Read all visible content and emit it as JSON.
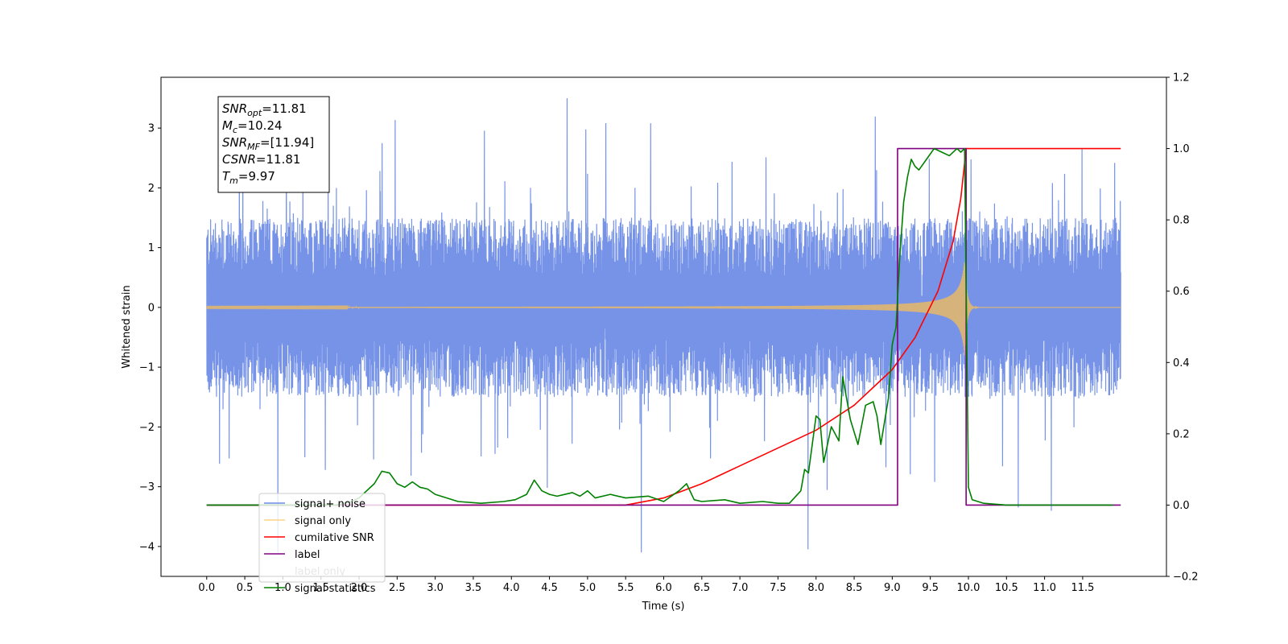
{
  "chart_data": {
    "type": "line",
    "title": "",
    "xlabel": "Time (s)",
    "ylabel": "Whitened strain",
    "y2label": "",
    "xlim": [
      -0.6,
      12.6
    ],
    "ylim": [
      -4.5,
      3.85
    ],
    "y2lim": [
      -0.2,
      1.2
    ],
    "x_ticks": [
      "0.0",
      "0.5",
      "1.0",
      "1.5",
      "2.0",
      "2.5",
      "3.0",
      "3.5",
      "4.0",
      "4.5",
      "5.0",
      "5.5",
      "6.0",
      "6.5",
      "7.0",
      "7.5",
      "8.0",
      "8.5",
      "9.0",
      "9.5",
      "10.0",
      "10.5",
      "11.0",
      "11.5"
    ],
    "y_ticks": [
      "3",
      "2",
      "1",
      "0",
      "−1",
      "−2",
      "−3",
      "−4"
    ],
    "y2_ticks": [
      "1.2",
      "1.0",
      "0.8",
      "0.6",
      "0.4",
      "0.2",
      "0.0",
      "−0.2"
    ],
    "grid": false,
    "legend_position": "lower-left",
    "annotation": {
      "lines": [
        {
          "sym": "SNR",
          "sub": "opt",
          "val": "=11.81"
        },
        {
          "sym": "M",
          "sub": "c",
          "val": "=10.24"
        },
        {
          "sym": "SNR",
          "sub": "MF",
          "val": "=[11.94]"
        },
        {
          "sym": "CSNR",
          "sub": "",
          "val": "=11.81"
        },
        {
          "sym": "T",
          "sub": "m",
          "val": "=9.97"
        }
      ]
    },
    "series": [
      {
        "name": "signal+ noise",
        "axis": "left",
        "color": "#6a8ae6",
        "description": "whitened noisy strain, roughly ±1.5 envelope with spikes up to about ±3.5, from t=0 to t=12",
        "x_range": [
          0,
          12
        ],
        "typical_amplitude": 1.5
      },
      {
        "name": "signal only",
        "axis": "left",
        "color": "#ffc04d",
        "description": "chirp waveform growing from ~0 to amplitude ~0.8 at t≈9.95, then ringdown to 0",
        "x_range": [
          0,
          12
        ],
        "peak_time": 9.95,
        "peak_amplitude": 0.8
      },
      {
        "name": "cumilative SNR",
        "axis": "right",
        "color": "#ff0000",
        "x": [
          0,
          5.5,
          6.0,
          6.5,
          7.0,
          7.5,
          8.0,
          8.5,
          9.0,
          9.3,
          9.6,
          9.8,
          9.9,
          9.97,
          9.97,
          12
        ],
        "y": [
          0.0,
          0.0,
          0.02,
          0.06,
          0.11,
          0.16,
          0.21,
          0.28,
          0.38,
          0.47,
          0.6,
          0.74,
          0.86,
          1.0,
          1.0,
          1.0
        ]
      },
      {
        "name": "label",
        "axis": "right",
        "color": "#800080",
        "x": [
          0,
          9.07,
          9.07,
          9.97,
          9.97,
          12
        ],
        "y": [
          0,
          0,
          1,
          1,
          0,
          0
        ]
      },
      {
        "name": "label only",
        "axis": "right",
        "color": "#ffffff",
        "x": [],
        "y": []
      },
      {
        "name": "signal statistics",
        "axis": "right",
        "color": "#008000",
        "x": [
          0,
          1.7,
          1.9,
          2.0,
          2.1,
          2.2,
          2.3,
          2.4,
          2.5,
          2.6,
          2.7,
          2.8,
          2.9,
          3.0,
          3.3,
          3.6,
          3.9,
          4.05,
          4.2,
          4.3,
          4.4,
          4.5,
          4.6,
          4.8,
          4.9,
          5.0,
          5.1,
          5.3,
          5.5,
          5.8,
          6.0,
          6.2,
          6.3,
          6.4,
          6.5,
          6.8,
          7.0,
          7.3,
          7.5,
          7.65,
          7.8,
          7.85,
          7.9,
          8.0,
          8.05,
          8.1,
          8.2,
          8.3,
          8.35,
          8.45,
          8.55,
          8.65,
          8.75,
          8.8,
          8.85,
          8.95,
          9.0,
          9.05,
          9.1,
          9.15,
          9.2,
          9.25,
          9.3,
          9.35,
          9.45,
          9.55,
          9.65,
          9.75,
          9.85,
          9.9,
          9.95,
          10.0,
          10.05,
          10.2,
          10.5,
          11.0,
          11.5,
          11.9
        ],
        "y": [
          0.0,
          0.0,
          0.01,
          0.02,
          0.04,
          0.06,
          0.095,
          0.09,
          0.06,
          0.05,
          0.065,
          0.05,
          0.045,
          0.03,
          0.01,
          0.005,
          0.01,
          0.015,
          0.03,
          0.07,
          0.04,
          0.03,
          0.025,
          0.035,
          0.025,
          0.04,
          0.02,
          0.03,
          0.02,
          0.025,
          0.01,
          0.04,
          0.06,
          0.015,
          0.01,
          0.015,
          0.005,
          0.01,
          0.005,
          0.005,
          0.04,
          0.1,
          0.09,
          0.25,
          0.24,
          0.12,
          0.22,
          0.18,
          0.36,
          0.24,
          0.17,
          0.28,
          0.29,
          0.25,
          0.17,
          0.3,
          0.45,
          0.5,
          0.7,
          0.85,
          0.92,
          0.97,
          0.95,
          0.94,
          0.97,
          1.0,
          0.99,
          0.98,
          1.0,
          0.99,
          1.0,
          0.05,
          0.015,
          0.005,
          0.0,
          0.0,
          0.0,
          0.0
        ]
      }
    ]
  }
}
